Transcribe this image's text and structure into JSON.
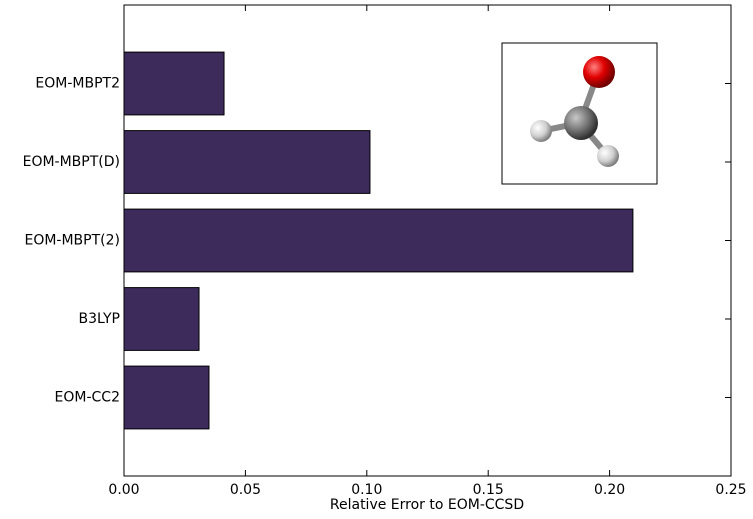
{
  "chart_data": {
    "type": "barh",
    "categories": [
      "EOM-MBPT2",
      "EOM-MBPT(D)",
      "EOM-MBPT(2)",
      "B3LYP",
      "EOM-CC2"
    ],
    "values": [
      0.0412,
      0.1013,
      0.2096,
      0.0309,
      0.035
    ],
    "color": "#3d2b5c",
    "xlabel": "Relative Error to EOM-CCSD",
    "xlim": [
      0,
      0.25
    ],
    "xticks": [
      {
        "value": 0,
        "label": "0.00"
      },
      {
        "value": 0.05,
        "label": "0.05"
      },
      {
        "value": 0.1,
        "label": "0.10"
      },
      {
        "value": 0.15,
        "label": "0.15"
      },
      {
        "value": 0.2,
        "label": "0.20"
      },
      {
        "value": 0.25,
        "label": "0.25"
      }
    ]
  }
}
